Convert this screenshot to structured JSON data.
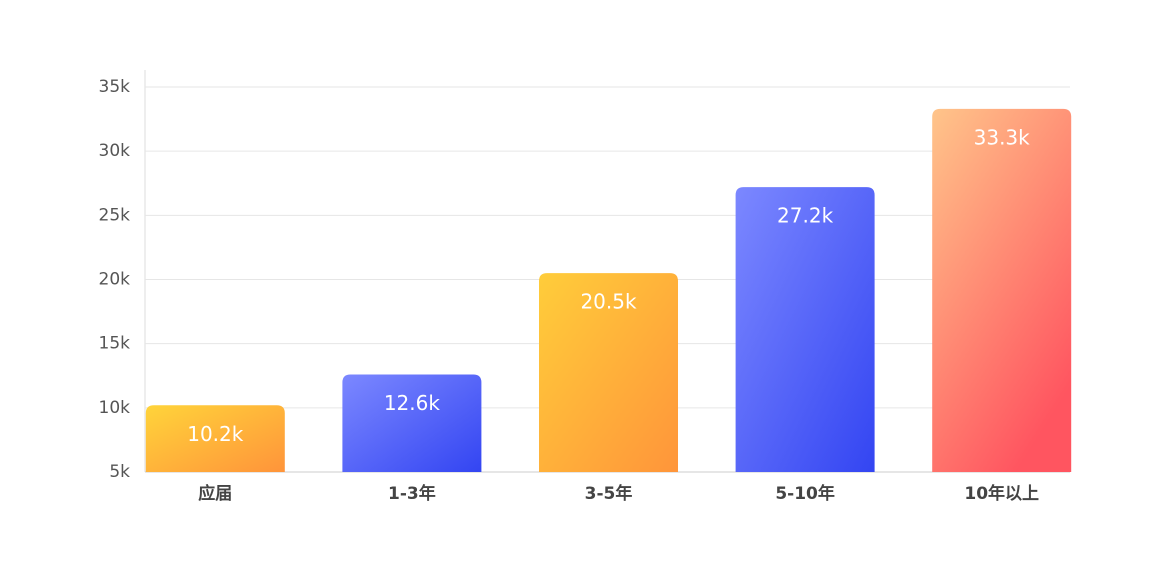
{
  "chart_data": {
    "type": "bar",
    "categories": [
      "应届",
      "1-3年",
      "3-5年",
      "5-10年",
      "10年以上"
    ],
    "values": [
      10.2,
      12.6,
      20.5,
      27.2,
      33.3
    ],
    "value_labels": [
      "10.2k",
      "12.6k",
      "20.5k",
      "27.2k",
      "33.3k"
    ],
    "colors": [
      [
        "#ffd43a",
        "#ff943a"
      ],
      [
        "#7c88ff",
        "#3345f2"
      ],
      [
        "#ffcd3a",
        "#ff953a"
      ],
      [
        "#7c88ff",
        "#3345f2"
      ],
      [
        "#ffc58a",
        "#ff5560"
      ]
    ],
    "ylim": [
      5,
      35
    ],
    "yticks": [
      {
        "value": 5,
        "label": "5k"
      },
      {
        "value": 10,
        "label": "10k"
      },
      {
        "value": 15,
        "label": "15k"
      },
      {
        "value": 20,
        "label": "20k"
      },
      {
        "value": 25,
        "label": "25k"
      },
      {
        "value": 30,
        "label": "30k"
      },
      {
        "value": 35,
        "label": "35k"
      }
    ],
    "grid": true
  }
}
